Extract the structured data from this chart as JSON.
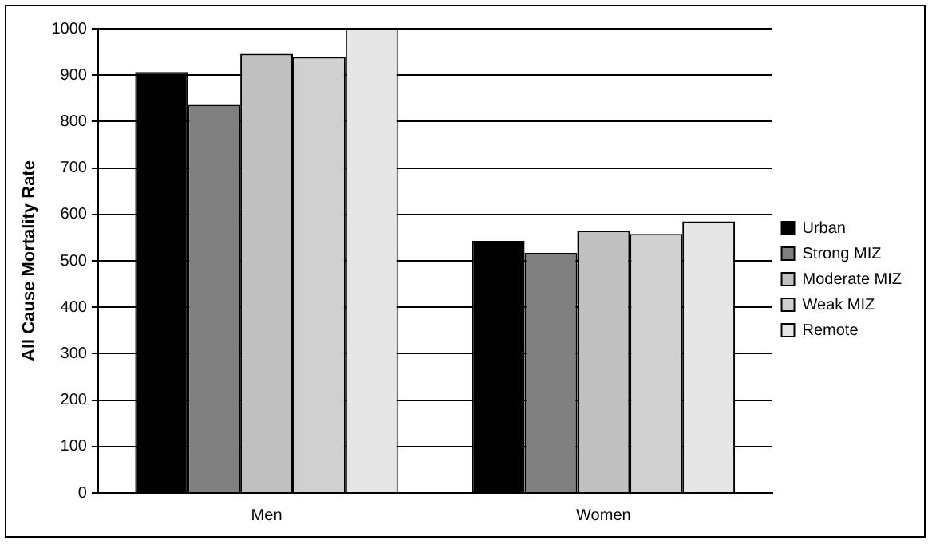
{
  "chart_data": {
    "type": "bar",
    "ylabel": "All Cause Mortality Rate",
    "categories": [
      "Men",
      "Women"
    ],
    "series": [
      {
        "name": "Urban",
        "color": "#000000",
        "values": [
          907,
          543
        ]
      },
      {
        "name": "Strong MIZ",
        "color": "#808080",
        "values": [
          836,
          517
        ]
      },
      {
        "name": "Moderate MIZ",
        "color": "#c0c0c0",
        "values": [
          946,
          565
        ]
      },
      {
        "name": "Weak MIZ",
        "color": "#d0d0d0",
        "values": [
          939,
          558
        ]
      },
      {
        "name": "Remote",
        "color": "#e6e6e6",
        "values": [
          1000,
          585
        ]
      }
    ],
    "ylim": [
      0,
      1000
    ],
    "yticks": [
      0,
      100,
      200,
      300,
      400,
      500,
      600,
      700,
      800,
      900,
      1000
    ],
    "grid": "y",
    "legend": "right"
  }
}
